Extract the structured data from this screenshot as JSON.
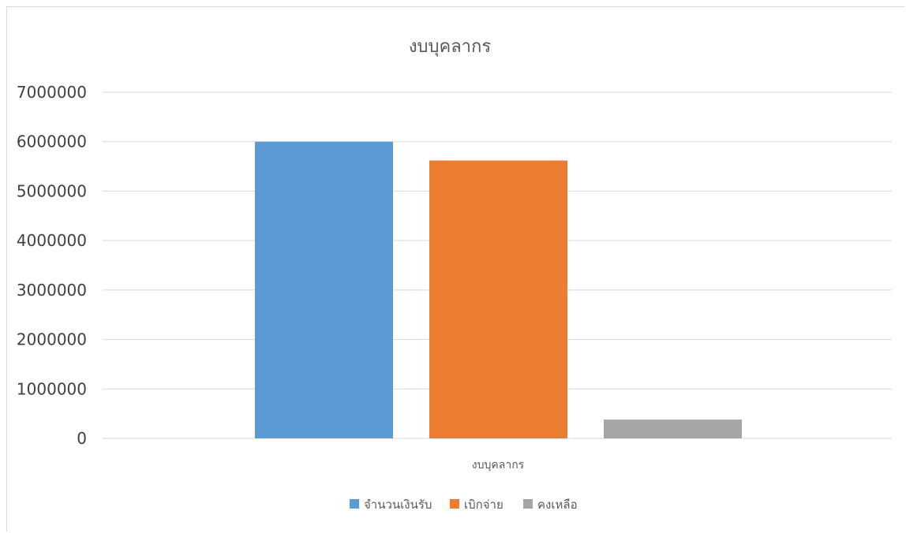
{
  "chart_data": {
    "type": "bar",
    "title": "งบบุคลากร",
    "categories": [
      "งบบุคลากร"
    ],
    "series": [
      {
        "name": "จำนวนเงินรับ",
        "values": [
          6000000
        ],
        "color": "#5b9bd5"
      },
      {
        "name": "เบิกจ่าย",
        "values": [
          5620000
        ],
        "color": "#ed7d31"
      },
      {
        "name": "คงเหลือ",
        "values": [
          380000
        ],
        "color": "#a5a5a5"
      }
    ],
    "ylim": [
      0,
      7000000
    ],
    "yticks": [
      "0",
      "1000000",
      "2000000",
      "3000000",
      "4000000",
      "5000000",
      "6000000",
      "7000000"
    ],
    "grid": true,
    "legend_position": "bottom",
    "gridline_color": "#d9d9d9"
  }
}
